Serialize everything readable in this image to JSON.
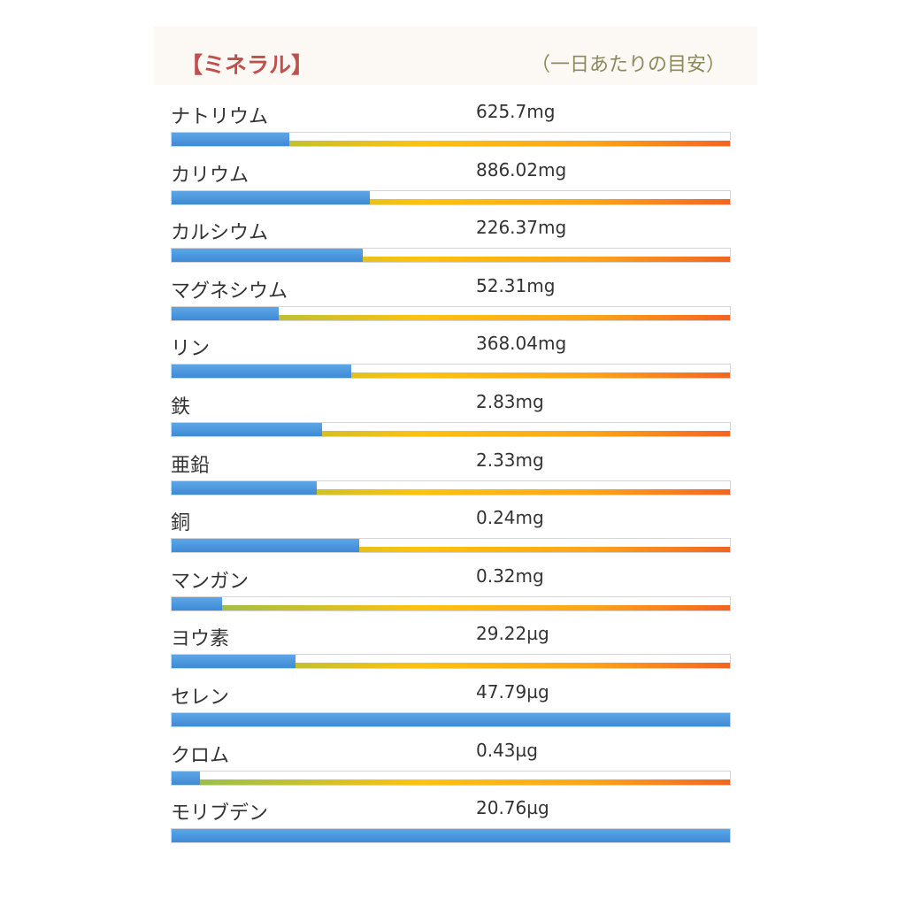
{
  "panel": {
    "title": "【ミネラル】",
    "note": "（一日あたりの目安）"
  },
  "colors": {
    "title": "#c0504d",
    "note": "#8a8a5a",
    "bar_fill": "#3d8ad7",
    "track_gradient": [
      "#8cbf52",
      "#ffc20e",
      "#fda519",
      "#f26522"
    ]
  },
  "chart_data": {
    "type": "bar",
    "orientation": "horizontal",
    "unit_of_values": "fraction of daily target",
    "items": [
      {
        "name": "ナトリウム",
        "amount": "625.7mg",
        "fraction": 0.21
      },
      {
        "name": "カリウム",
        "amount": "886.02mg",
        "fraction": 0.355
      },
      {
        "name": "カルシウム",
        "amount": "226.37mg",
        "fraction": 0.343
      },
      {
        "name": "マグネシウム",
        "amount": "52.31mg",
        "fraction": 0.192
      },
      {
        "name": "リン",
        "amount": "368.04mg",
        "fraction": 0.322
      },
      {
        "name": "鉄",
        "amount": "2.83mg",
        "fraction": 0.27
      },
      {
        "name": "亜鉛",
        "amount": "2.33mg",
        "fraction": 0.26
      },
      {
        "name": "銅",
        "amount": "0.24mg",
        "fraction": 0.336
      },
      {
        "name": "マンガン",
        "amount": "0.32mg",
        "fraction": 0.09
      },
      {
        "name": "ヨウ素",
        "amount": "29.22µg",
        "fraction": 0.222
      },
      {
        "name": "セレン",
        "amount": "47.79µg",
        "fraction": 1.0
      },
      {
        "name": "クロム",
        "amount": "0.43µg",
        "fraction": 0.05
      },
      {
        "name": "モリブデン",
        "amount": "20.76µg",
        "fraction": 1.0
      }
    ]
  }
}
